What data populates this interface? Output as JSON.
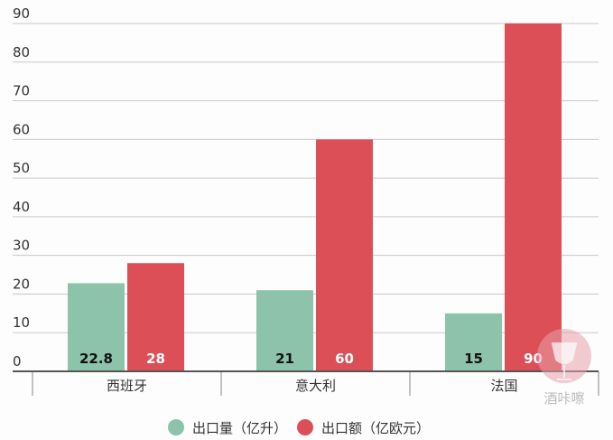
{
  "chart_data": {
    "type": "bar",
    "title": "",
    "xlabel": "",
    "ylabel": "",
    "categories": [
      "西班牙",
      "意大利",
      "法国"
    ],
    "series": [
      {
        "name": "出口量（亿升）",
        "values": [
          22.8,
          21,
          15
        ],
        "color": "#8cc3aa",
        "label_color": "#111111"
      },
      {
        "name": "出口额（亿欧元）",
        "values": [
          28,
          60,
          90
        ],
        "color": "#dd4f57",
        "label_color": "#ffffff"
      }
    ],
    "value_labels": [
      [
        "22.8",
        "21",
        "15"
      ],
      [
        "28",
        "60",
        "90"
      ]
    ],
    "ylim": [
      0,
      90
    ],
    "yticks": [
      0,
      10,
      20,
      30,
      40,
      50,
      60,
      70,
      80,
      90
    ],
    "grid": true,
    "legend_position": "bottom"
  },
  "watermark": {
    "text": "酒咔嚓",
    "color": "#e8a0aa"
  }
}
